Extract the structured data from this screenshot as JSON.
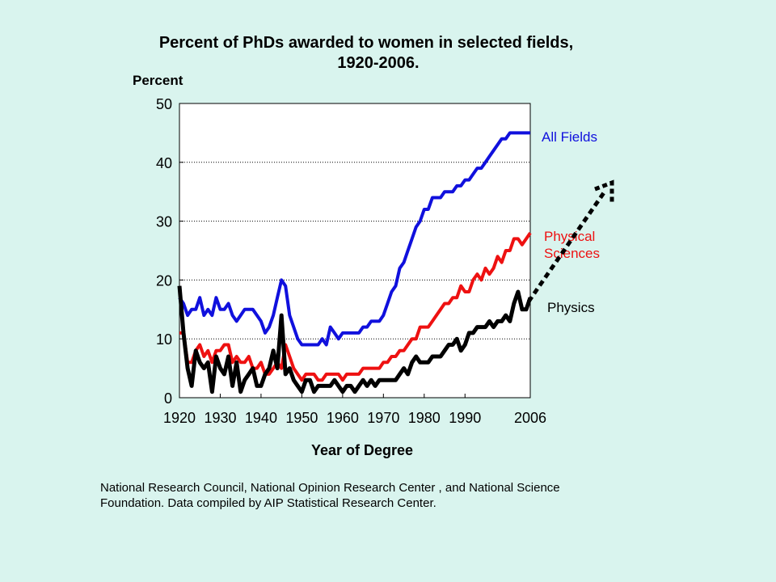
{
  "chart_data": {
    "type": "line",
    "title_line1": "Percent of PhDs awarded to women in selected fields,",
    "title_line2": "1920-2006.",
    "ylabel": "Percent",
    "xlabel": "Year of Degree",
    "xlim": [
      1920,
      2006
    ],
    "ylim": [
      0,
      50
    ],
    "x_ticks": [
      "1920",
      "1930",
      "1940",
      "1950",
      "1960",
      "1970",
      "1980",
      "1990",
      "2006"
    ],
    "y_ticks": [
      "0",
      "10",
      "20",
      "30",
      "40",
      "50"
    ],
    "grid": "horizontal dotted",
    "legend": "inline labels at right end of each line",
    "series": [
      {
        "name": "All Fields",
        "color": "#1010dd",
        "x": [
          1920,
          1921,
          1922,
          1923,
          1924,
          1925,
          1926,
          1927,
          1928,
          1929,
          1930,
          1931,
          1932,
          1933,
          1934,
          1935,
          1936,
          1937,
          1938,
          1939,
          1940,
          1941,
          1942,
          1943,
          1944,
          1945,
          1946,
          1947,
          1948,
          1949,
          1950,
          1951,
          1952,
          1953,
          1954,
          1955,
          1956,
          1957,
          1958,
          1959,
          1960,
          1961,
          1962,
          1963,
          1964,
          1965,
          1966,
          1967,
          1968,
          1969,
          1970,
          1971,
          1972,
          1973,
          1974,
          1975,
          1976,
          1977,
          1978,
          1979,
          1980,
          1981,
          1982,
          1983,
          1984,
          1985,
          1986,
          1987,
          1988,
          1989,
          1990,
          1991,
          1992,
          1993,
          1994,
          1995,
          1996,
          1997,
          1998,
          1999,
          2000,
          2001,
          2002,
          2003,
          2004,
          2005,
          2006
        ],
        "values": [
          17,
          16,
          14,
          15,
          15,
          17,
          14,
          15,
          14,
          17,
          15,
          15,
          16,
          14,
          13,
          14,
          15,
          15,
          15,
          14,
          13,
          11,
          12,
          14,
          17,
          20,
          19,
          14,
          12,
          10,
          9,
          9,
          9,
          9,
          9,
          10,
          9,
          12,
          11,
          10,
          11,
          11,
          11,
          11,
          11,
          12,
          12,
          13,
          13,
          13,
          14,
          16,
          18,
          19,
          22,
          23,
          25,
          27,
          29,
          30,
          32,
          32,
          34,
          34,
          34,
          35,
          35,
          35,
          36,
          36,
          37,
          37,
          38,
          39,
          39,
          40,
          41,
          42,
          43,
          44,
          44,
          45,
          45,
          45,
          45,
          45,
          45
        ]
      },
      {
        "name": "Physical Sciences",
        "color": "#ee1111",
        "x": [
          1920,
          1921,
          1922,
          1923,
          1924,
          1925,
          1926,
          1927,
          1928,
          1929,
          1930,
          1931,
          1932,
          1933,
          1934,
          1935,
          1936,
          1937,
          1938,
          1939,
          1940,
          1941,
          1942,
          1943,
          1944,
          1945,
          1946,
          1947,
          1948,
          1949,
          1950,
          1951,
          1952,
          1953,
          1954,
          1955,
          1956,
          1957,
          1958,
          1959,
          1960,
          1961,
          1962,
          1963,
          1964,
          1965,
          1966,
          1967,
          1968,
          1969,
          1970,
          1971,
          1972,
          1973,
          1974,
          1975,
          1976,
          1977,
          1978,
          1979,
          1980,
          1981,
          1982,
          1983,
          1984,
          1985,
          1986,
          1987,
          1988,
          1989,
          1990,
          1991,
          1992,
          1993,
          1994,
          1995,
          1996,
          1997,
          1998,
          1999,
          2000,
          2001,
          2002,
          2003,
          2004,
          2005,
          2006
        ],
        "values": [
          11,
          11,
          6,
          6,
          8,
          9,
          7,
          8,
          6,
          8,
          8,
          9,
          9,
          6,
          7,
          6,
          6,
          7,
          5,
          5,
          6,
          4,
          4,
          5,
          6,
          5,
          9,
          7,
          5,
          4,
          3,
          4,
          4,
          4,
          3,
          3,
          4,
          4,
          4,
          4,
          3,
          4,
          4,
          4,
          4,
          5,
          5,
          5,
          5,
          5,
          6,
          6,
          7,
          7,
          8,
          8,
          9,
          10,
          10,
          12,
          12,
          12,
          13,
          14,
          15,
          16,
          16,
          17,
          17,
          19,
          18,
          18,
          20,
          21,
          20,
          22,
          21,
          22,
          24,
          23,
          25,
          25,
          27,
          27,
          26,
          27,
          28
        ]
      },
      {
        "name": "Physics",
        "color": "#000000",
        "x": [
          1920,
          1921,
          1922,
          1923,
          1924,
          1925,
          1926,
          1927,
          1928,
          1929,
          1930,
          1931,
          1932,
          1933,
          1934,
          1935,
          1936,
          1937,
          1938,
          1939,
          1940,
          1941,
          1942,
          1943,
          1944,
          1945,
          1946,
          1947,
          1948,
          1949,
          1950,
          1951,
          1952,
          1953,
          1954,
          1955,
          1956,
          1957,
          1958,
          1959,
          1960,
          1961,
          1962,
          1963,
          1964,
          1965,
          1966,
          1967,
          1968,
          1969,
          1970,
          1971,
          1972,
          1973,
          1974,
          1975,
          1976,
          1977,
          1978,
          1979,
          1980,
          1981,
          1982,
          1983,
          1984,
          1985,
          1986,
          1987,
          1988,
          1989,
          1990,
          1991,
          1992,
          1993,
          1994,
          1995,
          1996,
          1997,
          1998,
          1999,
          2000,
          2001,
          2002,
          2003,
          2004,
          2005,
          2006
        ],
        "values": [
          19,
          11,
          5,
          2,
          8,
          6,
          5,
          6,
          1,
          7,
          5,
          4,
          7,
          2,
          6,
          1,
          3,
          4,
          5,
          2,
          2,
          4,
          5,
          8,
          5,
          14,
          4,
          5,
          3,
          2,
          1,
          3,
          3,
          1,
          2,
          2,
          2,
          2,
          3,
          2,
          1,
          2,
          2,
          1,
          2,
          3,
          2,
          3,
          2,
          3,
          3,
          3,
          3,
          3,
          4,
          5,
          4,
          6,
          7,
          6,
          6,
          6,
          7,
          7,
          7,
          8,
          9,
          9,
          10,
          8,
          9,
          11,
          11,
          12,
          12,
          12,
          13,
          12,
          13,
          13,
          14,
          13,
          16,
          18,
          15,
          15,
          17
        ]
      }
    ],
    "series_labels": {
      "all_fields": "All Fields",
      "physical_sciences_line1": "Physical",
      "physical_sciences_line2": "Sciences",
      "physics": "Physics"
    },
    "arrow": {
      "style": "dotted",
      "color": "#000000"
    }
  },
  "source_note": "National Research Council, National Opinion Research Center , and National Science\nFoundation. Data compiled by AIP Statistical Research Center."
}
